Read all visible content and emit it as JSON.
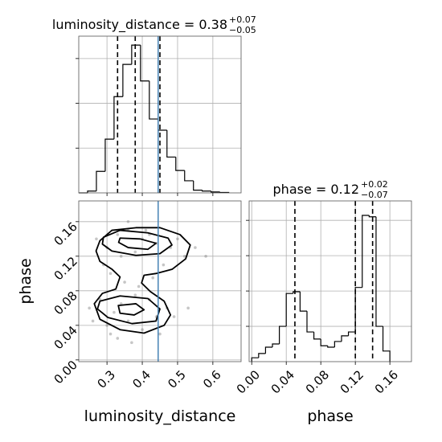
{
  "chart_data": [
    {
      "type": "histogram",
      "title": "luminosity_distance = 0.38",
      "title_plus": "+0.07",
      "title_minus": "−0.05",
      "bins": [
        0.22,
        0.245,
        0.27,
        0.295,
        0.32,
        0.345,
        0.37,
        0.395,
        0.42,
        0.445,
        0.47,
        0.495,
        0.52,
        0.545,
        0.57,
        0.595,
        0.62,
        0.645
      ],
      "values": [
        0.0,
        0.04,
        0.48,
        1.2,
        2.15,
        2.87,
        3.3,
        2.5,
        1.65,
        1.4,
        0.8,
        0.5,
        0.27,
        0.06,
        0.04,
        0.02,
        0.01
      ],
      "xlim": [
        0.22,
        0.68
      ],
      "xticks": [
        0.3,
        0.4,
        0.5,
        0.6
      ],
      "xtick_labels": false,
      "ylim": [
        0,
        3.5
      ],
      "yticks": [
        1,
        2,
        3
      ],
      "ytick_labels": false,
      "quantiles": [
        0.33,
        0.38,
        0.45
      ],
      "truth": 0.445,
      "color": "#000000",
      "truth_color": "#4682b4",
      "grid": true
    },
    {
      "type": "scatter",
      "x": [
        0.3,
        0.33,
        0.36,
        0.4,
        0.44,
        0.48,
        0.52,
        0.34,
        0.38,
        0.42,
        0.27,
        0.29,
        0.31,
        0.35,
        0.39,
        0.43,
        0.46,
        0.5,
        0.55,
        0.58,
        0.25,
        0.28,
        0.32,
        0.36,
        0.4,
        0.44,
        0.47,
        0.3,
        0.34,
        0.38,
        0.42,
        0.45,
        0.37,
        0.33,
        0.41,
        0.26,
        0.49,
        0.53,
        0.36,
        0.31
      ],
      "y": [
        0.13,
        0.145,
        0.15,
        0.14,
        0.135,
        0.13,
        0.12,
        0.12,
        0.125,
        0.145,
        0.14,
        0.11,
        0.1,
        0.09,
        0.085,
        0.095,
        0.11,
        0.14,
        0.13,
        0.12,
        0.06,
        0.07,
        0.055,
        0.045,
        0.035,
        0.05,
        0.06,
        0.04,
        0.065,
        0.075,
        0.07,
        0.03,
        0.02,
        0.025,
        0.15,
        0.045,
        0.05,
        0.06,
        0.16,
        0.03
      ],
      "contours": [
        {
          "x": [
            0.28,
            0.314,
            0.382,
            0.45,
            0.507,
            0.536,
            0.523,
            0.485,
            0.439,
            0.405,
            0.398,
            0.423,
            0.462,
            0.48,
            0.462,
            0.405,
            0.337,
            0.28,
            0.264,
            0.287,
            0.325,
            0.337,
            0.314,
            0.28,
            0.269
          ],
          "y": [
            0.138,
            0.15,
            0.153,
            0.153,
            0.145,
            0.133,
            0.117,
            0.105,
            0.1,
            0.098,
            0.089,
            0.079,
            0.068,
            0.052,
            0.04,
            0.031,
            0.035,
            0.047,
            0.065,
            0.077,
            0.082,
            0.096,
            0.105,
            0.114,
            0.126
          ]
        },
        {
          "x": [
            0.29,
            0.337,
            0.416,
            0.473,
            0.484,
            0.45,
            0.382,
            0.314,
            0.287
          ],
          "y": [
            0.142,
            0.15,
            0.147,
            0.141,
            0.133,
            0.123,
            0.121,
            0.126,
            0.134
          ]
        },
        {
          "x": [
            0.28,
            0.337,
            0.416,
            0.45,
            0.439,
            0.371,
            0.303,
            0.273
          ],
          "y": [
            0.068,
            0.074,
            0.071,
            0.059,
            0.045,
            0.042,
            0.049,
            0.059
          ]
        },
        {
          "x": [
            0.337,
            0.394,
            0.439,
            0.416,
            0.36,
            0.333
          ],
          "y": [
            0.141,
            0.14,
            0.135,
            0.128,
            0.13,
            0.136
          ]
        },
        {
          "x": [
            0.332,
            0.382,
            0.405,
            0.377,
            0.337
          ],
          "y": [
            0.063,
            0.065,
            0.058,
            0.052,
            0.054
          ]
        }
      ],
      "xlim": [
        0.22,
        0.68
      ],
      "xticks": [
        0.3,
        0.4,
        0.5,
        0.6
      ],
      "ylim": [
        -0.002,
        0.184
      ],
      "yticks": [
        {
          "value": 0,
          "label": "0.00"
        },
        0.04,
        0.08,
        0.12,
        0.16
      ],
      "xlabel": "luminosity_distance",
      "ylabel": "phase",
      "truth": 0.445,
      "color": "#808080",
      "contour_color": "#000000",
      "truth_color": "#4682b4",
      "grid": true
    },
    {
      "type": "histogram",
      "title": "phase = 0.12",
      "title_plus": "+0.02",
      "title_minus": "−0.07",
      "bins": [
        0.0,
        0.008,
        0.016,
        0.024,
        0.032,
        0.04,
        0.048,
        0.056,
        0.064,
        0.072,
        0.08,
        0.088,
        0.096,
        0.104,
        0.112,
        0.12,
        0.128,
        0.136,
        0.144,
        0.152,
        0.16
      ],
      "values": [
        0.11,
        0.23,
        0.41,
        0.5,
        1.0,
        1.93,
        1.98,
        1.43,
        0.84,
        0.64,
        0.45,
        0.41,
        0.57,
        0.73,
        0.84,
        2.1,
        4.14,
        4.1,
        1.0,
        0.3
      ],
      "xlim": [
        -0.003,
        0.185
      ],
      "xticks": [
        {
          "value": 0,
          "label": "0.00"
        },
        0.04,
        0.08,
        0.12,
        0.16
      ],
      "xtick_labels": true,
      "ylim": [
        0,
        4.55
      ],
      "yticks": [
        1,
        2,
        3,
        4
      ],
      "ytick_labels": false,
      "xlabel": "phase",
      "quantiles": [
        0.05,
        0.12,
        0.14
      ],
      "color": "#000000",
      "grid": true
    }
  ]
}
